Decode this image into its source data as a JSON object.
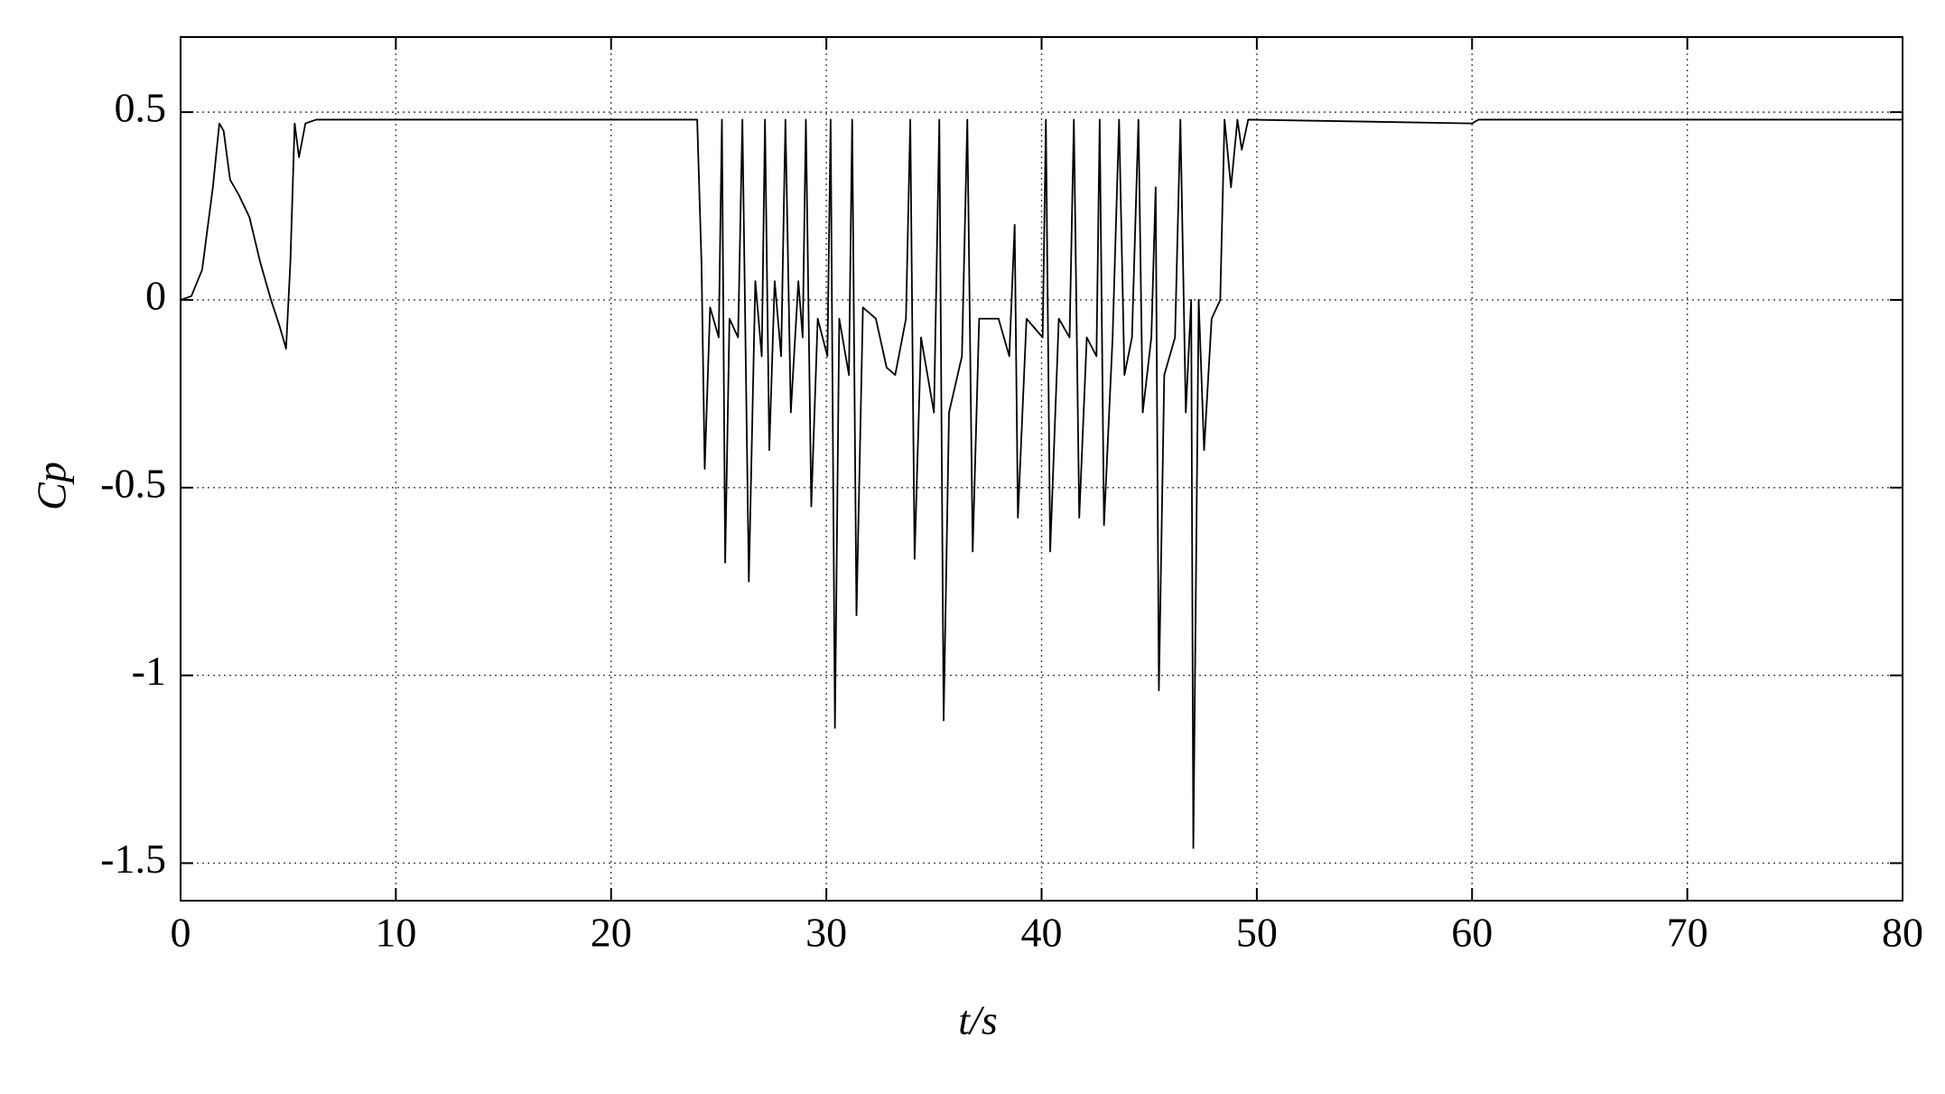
{
  "chart_data": {
    "type": "line",
    "x_label": "t/s",
    "y_label": "Cp",
    "x": [
      0,
      0.5,
      1,
      1.5,
      1.8,
      2,
      2.3,
      2.7,
      3.2,
      3.7,
      4.2,
      4.6,
      4.9,
      5.1,
      5.3,
      5.5,
      5.8,
      6.3,
      24,
      24.2,
      24.35,
      24.6,
      25,
      25.15,
      25.3,
      25.5,
      25.9,
      26.1,
      26.4,
      26.7,
      27,
      27.15,
      27.35,
      27.6,
      27.9,
      28.1,
      28.35,
      28.7,
      28.9,
      29.05,
      29.3,
      29.6,
      30.05,
      30.2,
      30.4,
      30.6,
      31.05,
      31.2,
      31.4,
      31.7,
      32.3,
      32.8,
      33.2,
      33.7,
      33.9,
      34.1,
      34.4,
      35,
      35.25,
      35.45,
      35.7,
      36.3,
      36.55,
      36.8,
      37.1,
      38,
      38.5,
      38.75,
      38.9,
      39.3,
      40.05,
      40.2,
      40.4,
      40.8,
      41.3,
      41.5,
      41.75,
      42.1,
      42.55,
      42.7,
      42.9,
      43.3,
      43.6,
      43.85,
      44.2,
      44.5,
      44.7,
      45.1,
      45.3,
      45.45,
      45.7,
      46.2,
      46.45,
      46.7,
      46.95,
      47.05,
      47.3,
      47.55,
      47.9,
      48.3,
      48.5,
      48.8,
      49.1,
      49.3,
      49.6,
      60,
      60.3,
      80
    ],
    "series": [
      {
        "color": "#000000",
        "values": [
          0,
          0.01,
          0.08,
          0.3,
          0.47,
          0.45,
          0.32,
          0.28,
          0.22,
          0.1,
          0.0,
          -0.07,
          -0.13,
          0.1,
          0.47,
          0.38,
          0.47,
          0.48,
          0.48,
          0.1,
          -0.45,
          -0.02,
          -0.1,
          0.48,
          -0.7,
          -0.05,
          -0.1,
          0.48,
          -0.75,
          0.05,
          -0.15,
          0.48,
          -0.4,
          0.05,
          -0.15,
          0.48,
          -0.3,
          0.05,
          -0.1,
          0.48,
          -0.55,
          -0.05,
          -0.15,
          0.48,
          -1.14,
          -0.05,
          -0.2,
          0.48,
          -0.84,
          -0.02,
          -0.05,
          -0.18,
          -0.2,
          -0.05,
          0.48,
          -0.69,
          -0.1,
          -0.3,
          0.48,
          -1.12,
          -0.3,
          -0.15,
          0.48,
          -0.67,
          -0.05,
          -0.05,
          -0.15,
          0.2,
          -0.58,
          -0.05,
          -0.1,
          0.48,
          -0.67,
          -0.05,
          -0.1,
          0.48,
          -0.58,
          -0.1,
          -0.15,
          0.48,
          -0.6,
          -0.1,
          0.48,
          -0.2,
          -0.1,
          0.48,
          -0.3,
          -0.1,
          0.3,
          -1.04,
          -0.2,
          -0.1,
          0.48,
          -0.3,
          0.0,
          -1.46,
          0.0,
          -0.4,
          -0.05,
          0.0,
          0.48,
          0.3,
          0.48,
          0.4,
          0.48,
          0.47,
          0.48,
          0.48
        ]
      }
    ],
    "xlim": [
      0,
      80
    ],
    "ylim": [
      -1.6,
      0.7
    ],
    "xticks": [
      0,
      10,
      20,
      30,
      40,
      50,
      60,
      70,
      80
    ],
    "yticks": [
      -1.5,
      -1,
      -0.5,
      0,
      0.5
    ],
    "grid": true
  }
}
